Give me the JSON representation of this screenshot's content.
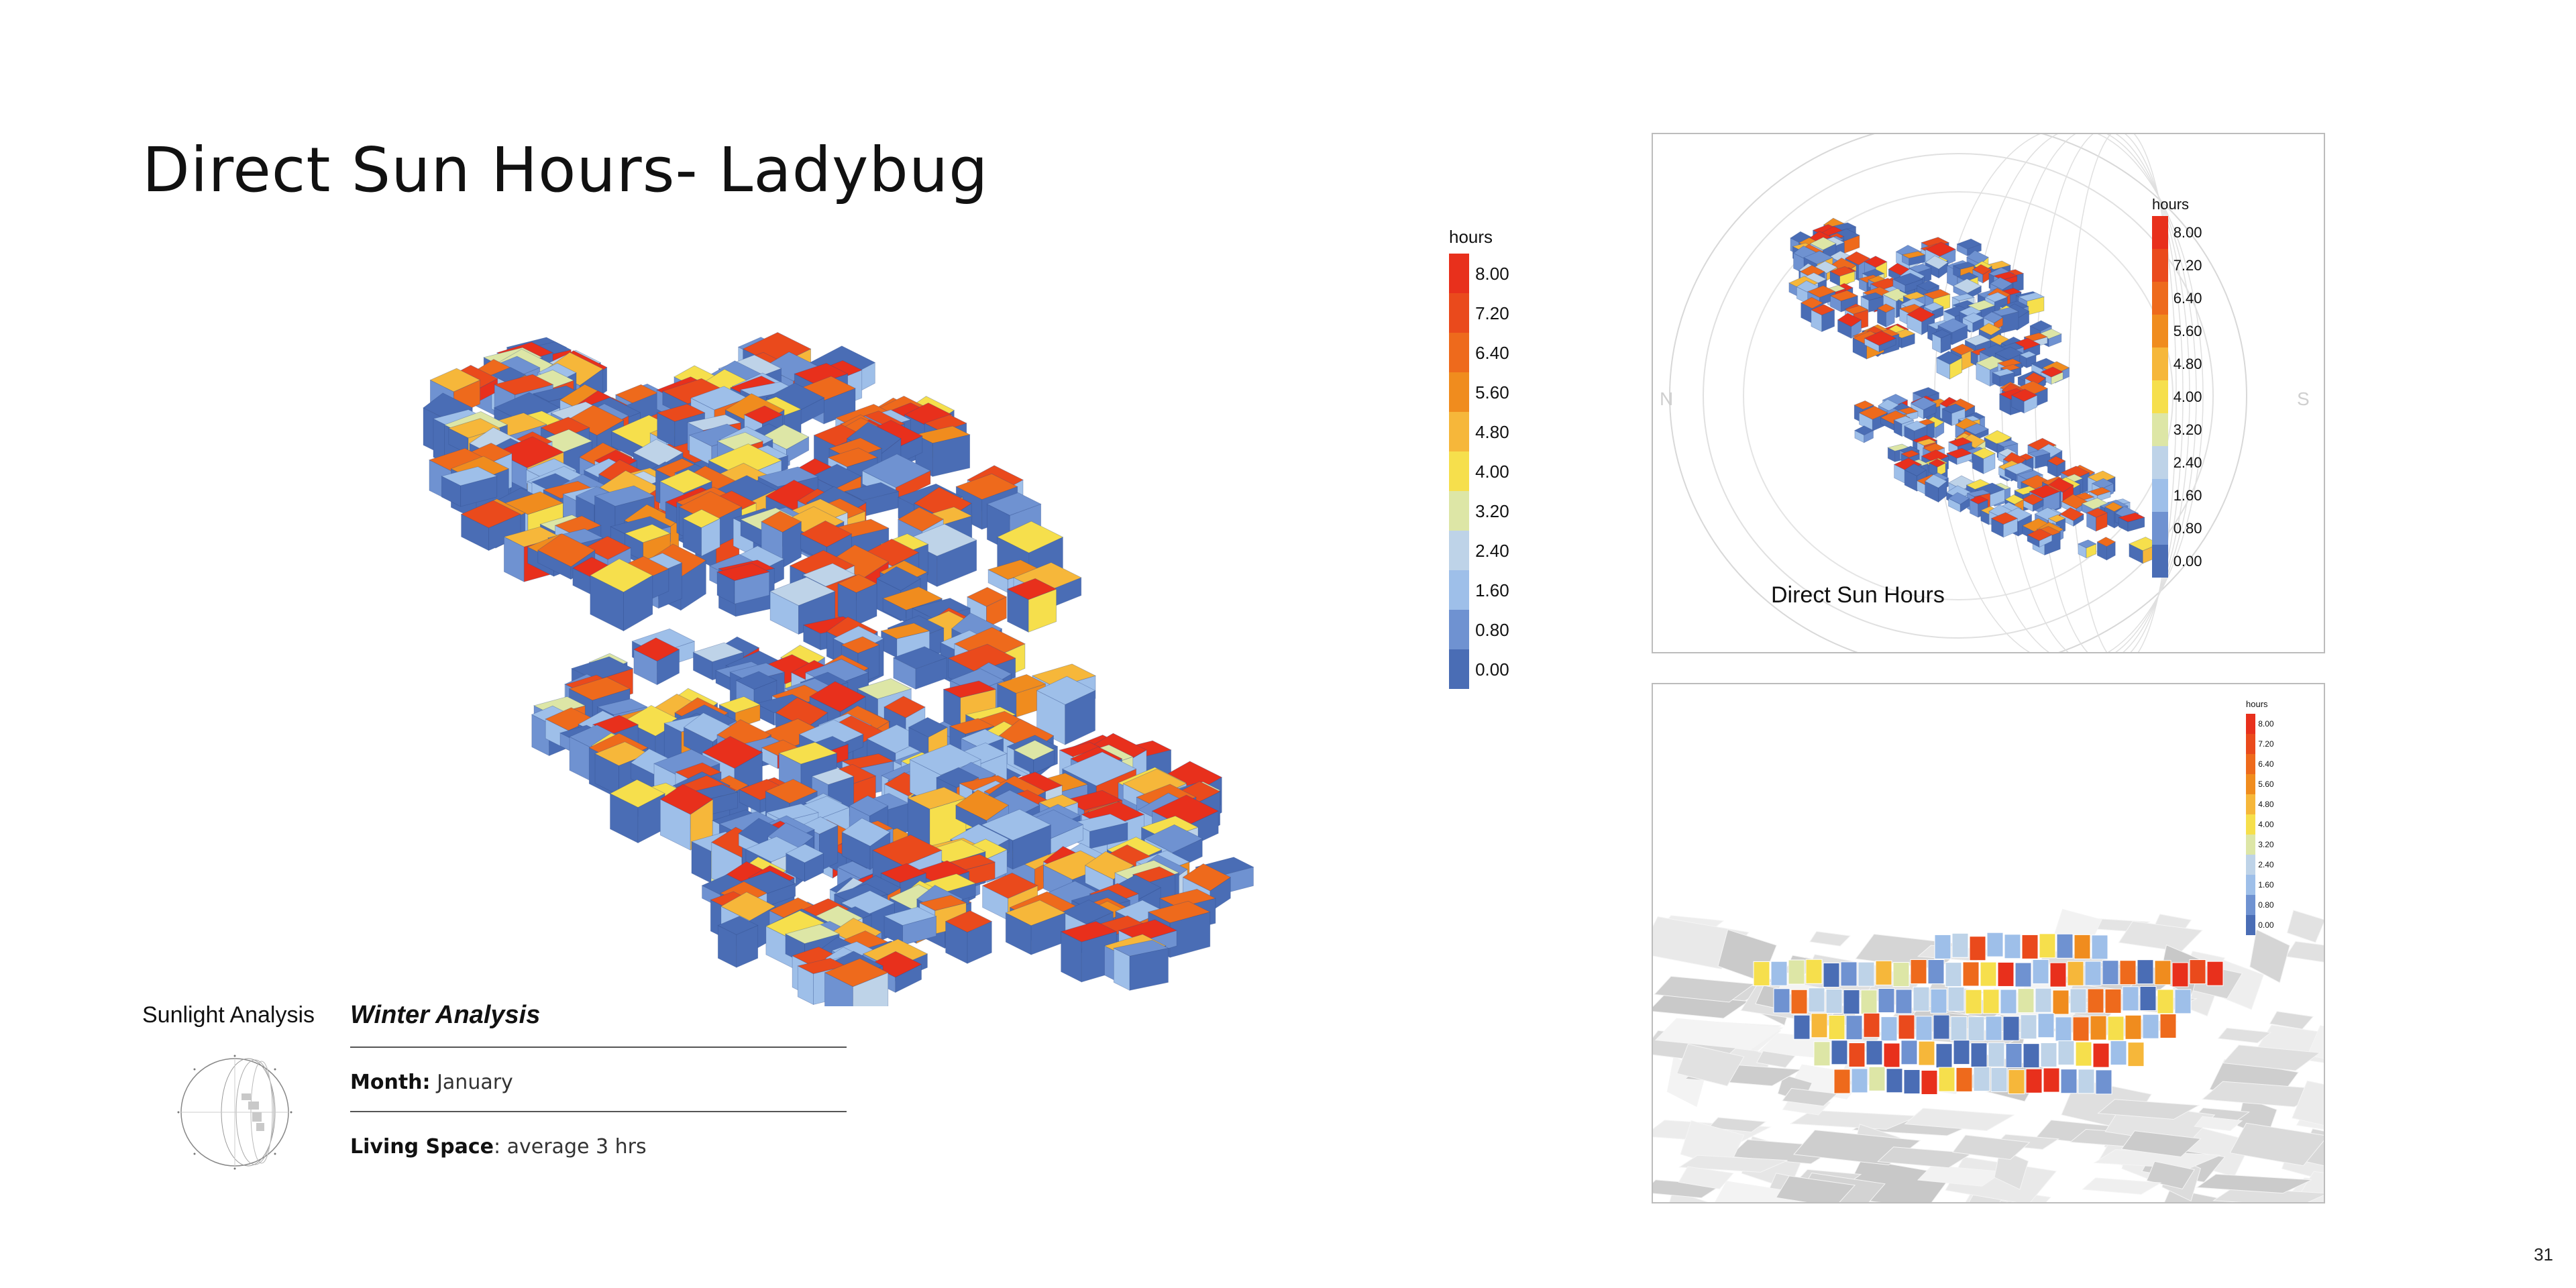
{
  "page": {
    "title": "Direct Sun Hours- Ladybug",
    "page_number": "31"
  },
  "legend_main": {
    "title": "hours",
    "ticks": [
      "8.00",
      "7.20",
      "6.40",
      "5.60",
      "4.80",
      "4.00",
      "3.20",
      "2.40",
      "1.60",
      "0.80",
      "0.00"
    ]
  },
  "colors": {
    "scale": [
      "#e8301c",
      "#ea4a1c",
      "#ee6a1c",
      "#f08c1e",
      "#f6b73a",
      "#f6df4c",
      "#dde6a6",
      "#bed3e8",
      "#9ebfe9",
      "#6f92d1",
      "#4a6db5"
    ],
    "gray_outline": "#bcbcbc"
  },
  "inset_top": {
    "caption": "Direct Sun Hours",
    "legend_title": "hours",
    "ticks": [
      "8.00",
      "7.20",
      "6.40",
      "5.60",
      "4.80",
      "4.00",
      "3.20",
      "2.40",
      "1.60",
      "0.80",
      "0.00"
    ],
    "compass": {
      "n": "N",
      "s": "S"
    }
  },
  "inset_bottom": {
    "legend_title": "hours",
    "ticks": [
      "8.00",
      "7.20",
      "6.40",
      "5.60",
      "4.80",
      "4.00",
      "3.20",
      "2.40",
      "1.60",
      "0.80",
      "0.00"
    ]
  },
  "analysis": {
    "label": "Sunlight Analysis",
    "heading": "Winter Analysis",
    "month_label": "Month:",
    "month_value": "January",
    "living_label": "Living Space",
    "living_value": ": average 3 hrs"
  }
}
